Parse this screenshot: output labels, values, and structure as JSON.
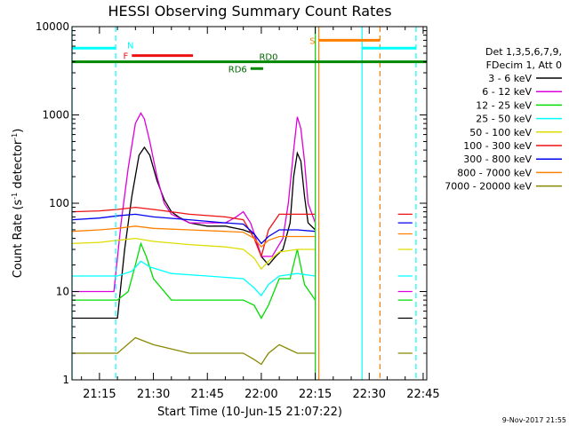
{
  "chart_data": {
    "type": "line",
    "title": "HESSI Observing Summary Count Rates",
    "xlabel": "Start Time (10-Jun-15 21:07:22)",
    "ylabel": "Count Rate (s-1 detector-1)",
    "ylabel_parts": [
      "Count Rate (s",
      "-1",
      " detector",
      "-1",
      ")"
    ],
    "yscale": "log",
    "ylim": [
      1,
      10000
    ],
    "xlim": [
      "21:07:22",
      "22:46:00"
    ],
    "x_ticks": [
      "21:15",
      "21:30",
      "21:45",
      "22:00",
      "22:15",
      "22:30",
      "22:45"
    ],
    "y_ticks": [
      "1",
      "10",
      "100",
      "1000",
      "10000"
    ],
    "footer_date": "9-Nov-2017 21:55",
    "legend_header": [
      "Det 1,3,5,6,7,9,",
      "FDecim 1, Att 0"
    ],
    "legend": [
      {
        "label": "3 - 6 keV",
        "color": "#000000"
      },
      {
        "label": "6 - 12 keV",
        "color": "#dd00dd"
      },
      {
        "label": "12 - 25 keV",
        "color": "#00dd00"
      },
      {
        "label": "25 - 50 keV",
        "color": "#00ffff"
      },
      {
        "label": "50 - 100 keV",
        "color": "#dddd00"
      },
      {
        "label": "100 - 300 keV",
        "color": "#ee1111"
      },
      {
        "label": "300 - 800 keV",
        "color": "#0000ee"
      },
      {
        "label": "800 - 7000 keV",
        "color": "#ff8000"
      },
      {
        "label": "7000 - 20000 keV",
        "color": "#888800"
      }
    ],
    "flag_bars": [
      {
        "label": "N",
        "start": "21:07:22",
        "end": "21:19:30",
        "value": 5700,
        "color": "#00ffff",
        "label_at": "start"
      },
      {
        "label": "F",
        "start": "21:24:00",
        "end": "21:41:00",
        "value": 4700,
        "color": "#ee1111",
        "label_at": "before"
      },
      {
        "label": "RD0",
        "start": "21:07:22",
        "end": "22:46:00",
        "value": 4000,
        "color": "#008800",
        "label_at": "mid"
      },
      {
        "label": "RD6",
        "start": "21:57:00",
        "end": "22:00:30",
        "value": 3350,
        "color": "#008800",
        "label_at": "before"
      },
      {
        "label": "S",
        "start": "22:16:00",
        "end": "22:33:00",
        "value": 7000,
        "color": "#ff8000",
        "label_at": "before"
      },
      {
        "label": "",
        "start": "22:28:00",
        "end": "22:43:00",
        "value": 5700,
        "color": "#00ffff",
        "label_at": "none"
      }
    ],
    "vertical_lines": [
      {
        "time": "21:07:22",
        "color": "#00ffff",
        "style": "solid"
      },
      {
        "time": "21:19:30",
        "color": "#00ffff",
        "style": "dashed"
      },
      {
        "time": "22:15:00",
        "color": "#00dd00",
        "style": "solid"
      },
      {
        "time": "22:16:00",
        "color": "#ff8000",
        "style": "solid"
      },
      {
        "time": "22:28:00",
        "color": "#00ffff",
        "style": "solid"
      },
      {
        "time": "22:33:00",
        "color": "#ff8000",
        "style": "dashed"
      },
      {
        "time": "22:43:00",
        "color": "#00ffff",
        "style": "dashed"
      }
    ],
    "data_gap": [
      "22:15:00",
      "22:38:00"
    ],
    "series": [
      {
        "name": "3 - 6 keV",
        "color": "#000000",
        "x": [
          "21:07:22",
          "21:20:00",
          "21:22:00",
          "21:24:00",
          "21:26:00",
          "21:27:30",
          "21:29:00",
          "21:31:00",
          "21:33:00",
          "21:35:00",
          "21:37:00",
          "21:40:00",
          "21:45:00",
          "21:50:00",
          "21:55:00",
          "21:58:00",
          "22:00:00",
          "22:02:00",
          "22:04:00",
          "22:06:00",
          "22:08:00",
          "22:09:00",
          "22:10:00",
          "22:11:00",
          "22:12:00",
          "22:13:00",
          "22:15:00",
          "22:38:00",
          "22:42:00"
        ],
        "y": [
          5,
          5,
          30,
          120,
          350,
          430,
          350,
          180,
          110,
          80,
          70,
          60,
          55,
          55,
          50,
          45,
          25,
          20,
          25,
          30,
          60,
          200,
          370,
          300,
          120,
          60,
          50,
          5,
          5
        ]
      },
      {
        "name": "6 - 12 keV",
        "color": "#dd00dd",
        "x": [
          "21:07:22",
          "21:19:00",
          "21:21:00",
          "21:23:00",
          "21:25:00",
          "21:26:30",
          "21:27:30",
          "21:29:00",
          "21:31:00",
          "21:33:00",
          "21:35:00",
          "21:40:00",
          "21:50:00",
          "21:53:00",
          "21:55:00",
          "21:57:00",
          "21:58:30",
          "22:00:00",
          "22:03:00",
          "22:06:00",
          "22:07:30",
          "22:09:00",
          "22:10:00",
          "22:11:00",
          "22:12:00",
          "22:13:00",
          "22:15:00",
          "22:38:00",
          "22:42:00"
        ],
        "y": [
          10,
          10,
          60,
          250,
          800,
          1050,
          900,
          500,
          200,
          100,
          75,
          60,
          60,
          70,
          80,
          60,
          40,
          25,
          25,
          40,
          100,
          400,
          950,
          700,
          300,
          100,
          60,
          10,
          10
        ]
      },
      {
        "name": "12 - 25 keV",
        "color": "#00dd00",
        "x": [
          "21:07:22",
          "21:20:00",
          "21:23:00",
          "21:25:00",
          "21:26:30",
          "21:28:00",
          "21:30:00",
          "21:35:00",
          "21:50:00",
          "21:55:00",
          "21:58:00",
          "22:00:00",
          "22:02:00",
          "22:05:00",
          "22:08:00",
          "22:10:00",
          "22:12:00",
          "22:15:00",
          "22:38:00",
          "22:42:00"
        ],
        "y": [
          8,
          8,
          10,
          20,
          35,
          25,
          14,
          8,
          8,
          8,
          7,
          5,
          7,
          14,
          14,
          30,
          12,
          8,
          8,
          8
        ]
      },
      {
        "name": "25 - 50 keV",
        "color": "#00ffff",
        "x": [
          "21:07:22",
          "21:15:00",
          "21:20:00",
          "21:24:00",
          "21:26:30",
          "21:29:00",
          "21:35:00",
          "21:45:00",
          "21:55:00",
          "21:58:00",
          "22:00:00",
          "22:02:00",
          "22:05:00",
          "22:10:00",
          "22:15:00",
          "22:38:00",
          "22:42:00"
        ],
        "y": [
          15,
          15,
          15,
          17,
          22,
          19,
          16,
          15,
          14,
          11,
          9,
          12,
          15,
          16,
          15,
          15,
          15
        ]
      },
      {
        "name": "50 - 100 keV",
        "color": "#dddd00",
        "x": [
          "21:07:22",
          "21:15:00",
          "21:20:00",
          "21:25:00",
          "21:30:00",
          "21:40:00",
          "21:50:00",
          "21:55:00",
          "21:58:00",
          "22:00:00",
          "22:02:00",
          "22:05:00",
          "22:10:00",
          "22:15:00",
          "22:38:00",
          "22:42:00"
        ],
        "y": [
          35,
          36,
          38,
          40,
          37,
          34,
          32,
          30,
          24,
          18,
          22,
          28,
          30,
          30,
          30,
          30
        ]
      },
      {
        "name": "100 - 300 keV",
        "color": "#ee1111",
        "x": [
          "21:07:22",
          "21:15:00",
          "21:20:00",
          "21:25:00",
          "21:30:00",
          "21:35:00",
          "21:40:00",
          "21:50:00",
          "21:55:00",
          "21:58:00",
          "22:00:00",
          "22:02:00",
          "22:05:00",
          "22:10:00",
          "22:15:00",
          "22:38:00",
          "22:42:00"
        ],
        "y": [
          80,
          82,
          85,
          90,
          85,
          80,
          75,
          70,
          65,
          40,
          25,
          50,
          75,
          75,
          75,
          75,
          75
        ]
      },
      {
        "name": "300 - 800 keV",
        "color": "#0000ee",
        "x": [
          "21:07:22",
          "21:15:00",
          "21:20:00",
          "21:25:00",
          "21:30:00",
          "21:40:00",
          "21:50:00",
          "21:55:00",
          "21:58:00",
          "22:00:00",
          "22:02:00",
          "22:05:00",
          "22:10:00",
          "22:15:00",
          "22:38:00",
          "22:42:00"
        ],
        "y": [
          65,
          68,
          72,
          75,
          70,
          65,
          60,
          58,
          45,
          35,
          42,
          50,
          50,
          48,
          60,
          60
        ]
      },
      {
        "name": "800 - 7000 keV",
        "color": "#ff8000",
        "x": [
          "21:07:22",
          "21:15:00",
          "21:20:00",
          "21:25:00",
          "21:30:00",
          "21:40:00",
          "21:50:00",
          "21:55:00",
          "21:58:00",
          "22:00:00",
          "22:02:00",
          "22:05:00",
          "22:10:00",
          "22:15:00",
          "22:38:00",
          "22:42:00"
        ],
        "y": [
          48,
          50,
          52,
          55,
          52,
          50,
          48,
          47,
          40,
          32,
          38,
          42,
          42,
          42,
          45,
          45
        ]
      },
      {
        "name": "7000 - 20000 keV",
        "color": "#888800",
        "x": [
          "21:07:22",
          "21:15:00",
          "21:20:00",
          "21:25:00",
          "21:30:00",
          "21:40:00",
          "21:50:00",
          "21:55:00",
          "21:58:00",
          "22:00:00",
          "22:02:00",
          "22:05:00",
          "22:10:00",
          "22:15:00",
          "22:38:00",
          "22:42:00"
        ],
        "y": [
          2,
          2,
          2,
          3,
          2.5,
          2,
          2,
          2,
          1.7,
          1.5,
          2,
          2.5,
          2,
          2,
          2,
          2
        ]
      }
    ]
  }
}
